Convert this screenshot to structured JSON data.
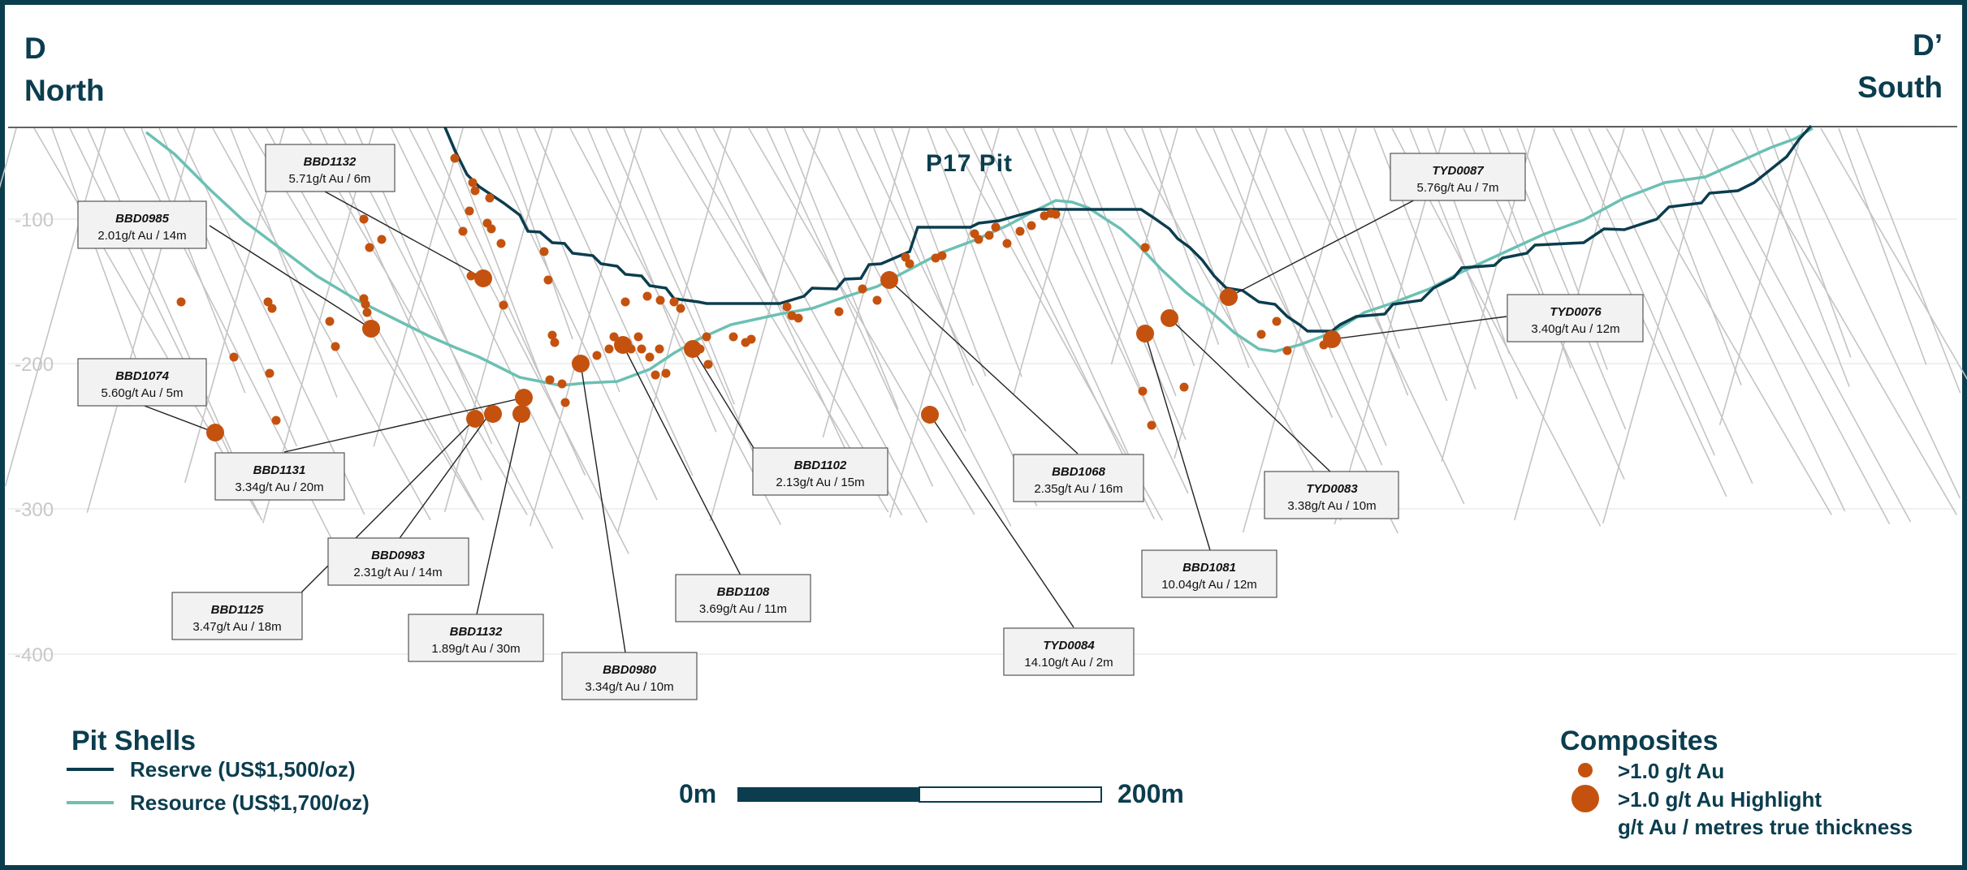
{
  "section": {
    "left_letter": "D",
    "left_direction": "North",
    "right_letter": "D’",
    "right_direction": "South",
    "pit_name": "P17 Pit"
  },
  "depth_labels": [
    "-100",
    "-200",
    "-300",
    "-400"
  ],
  "callouts": [
    {
      "name": "BBD1132",
      "value": "5.71g/t Au / 6m"
    },
    {
      "name": "BBD0985",
      "value": "2.01g/t Au / 14m"
    },
    {
      "name": "BBD1074",
      "value": "5.60g/t Au / 5m"
    },
    {
      "name": "BBD1131",
      "value": "3.34g/t Au / 20m"
    },
    {
      "name": "BBD0983",
      "value": "2.31g/t Au / 14m"
    },
    {
      "name": "BBD1125",
      "value": "3.47g/t Au / 18m"
    },
    {
      "name": "BBD1132",
      "value": "1.89g/t Au / 30m"
    },
    {
      "name": "BBD0980",
      "value": "3.34g/t Au / 10m"
    },
    {
      "name": "BBD1108",
      "value": "3.69g/t Au / 11m"
    },
    {
      "name": "BBD1102",
      "value": "2.13g/t Au / 15m"
    },
    {
      "name": "BBD1068",
      "value": "2.35g/t Au / 16m"
    },
    {
      "name": "TYD0084",
      "value": "14.10g/t Au / 2m"
    },
    {
      "name": "BBD1081",
      "value": "10.04g/t Au / 12m"
    },
    {
      "name": "TYD0083",
      "value": "3.38g/t Au / 10m"
    },
    {
      "name": "TYD0087",
      "value": "5.76g/t Au / 7m"
    },
    {
      "name": "TYD0076",
      "value": "3.40g/t Au / 12m"
    }
  ],
  "legend_pit": {
    "title": "Pit Shells",
    "reserve": "Reserve (US$1,500/oz)",
    "resource": "Resource (US$1,700/oz)"
  },
  "legend_comp": {
    "title": "Composites",
    "small": ">1.0 g/t Au",
    "large": ">1.0 g/t Au Highlight",
    "note": "g/t Au / metres true thickness"
  },
  "scale": {
    "start": "0m",
    "end": "200m"
  },
  "colors": {
    "reserve": "#0b3d4e",
    "resource": "#6cc0b3",
    "composite": "#c4520e",
    "drillhole": "#c4c4c4",
    "frame": "#0b3d4e"
  }
}
